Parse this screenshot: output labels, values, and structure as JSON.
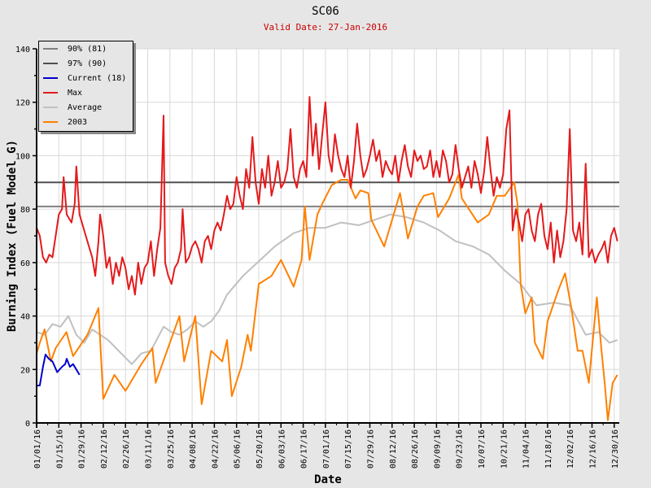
{
  "chart_data": {
    "type": "line",
    "title": "SC06",
    "subtitle": "Valid Date: 27-Jan-2016",
    "xlabel": "Date",
    "ylabel": "Burning Index (Fuel Model G)",
    "ylim": [
      0,
      140
    ],
    "xlim_days": [
      0,
      367
    ],
    "yticks": [
      "0",
      "20",
      "40",
      "60",
      "80",
      "100",
      "120",
      "140"
    ],
    "xticks": [
      "01/01/16",
      "01/15/16",
      "01/29/16",
      "02/12/16",
      "02/26/16",
      "03/11/16",
      "03/25/16",
      "04/08/16",
      "04/22/16",
      "05/06/16",
      "05/20/16",
      "06/03/16",
      "06/17/16",
      "07/01/16",
      "07/15/16",
      "07/29/16",
      "08/12/16",
      "08/26/16",
      "09/09/16",
      "09/23/16",
      "10/07/16",
      "10/21/16",
      "11/04/16",
      "11/18/16",
      "12/02/16",
      "12/16/16",
      "12/30/16"
    ],
    "grid": true,
    "legend_position": "top-left",
    "thresholds": [
      {
        "name": "90% (81)",
        "value": 81,
        "color": "#808080"
      },
      {
        "name": "97% (90)",
        "value": 90,
        "color": "#505050"
      }
    ],
    "series": [
      {
        "name": "Current (18)",
        "color": "#0000cc",
        "x": [
          0,
          2,
          4,
          5.6,
          7.7,
          10,
          13,
          16,
          18,
          19,
          21,
          23,
          25,
          27
        ],
        "y": [
          14,
          14,
          21,
          25.6,
          24,
          23,
          19,
          21,
          22,
          24,
          21,
          22,
          20,
          18
        ]
      },
      {
        "name": "Max",
        "color": "#e41a1c",
        "x": [
          0,
          2,
          4,
          6,
          8,
          10,
          12,
          14,
          16,
          17,
          19,
          22,
          24,
          25,
          27,
          30,
          32,
          35,
          37,
          39,
          40,
          42,
          44,
          46,
          48,
          50,
          52,
          54,
          56,
          58,
          60,
          62,
          64,
          66,
          68,
          70,
          72,
          74,
          76,
          78,
          80,
          81,
          83,
          85,
          87,
          89,
          91,
          92,
          94,
          96,
          98,
          100,
          102,
          104,
          106,
          108,
          110,
          112,
          114,
          116,
          118,
          120,
          122,
          124,
          126,
          128,
          130,
          132,
          134,
          136,
          138,
          140,
          142,
          144,
          146,
          148,
          150,
          152,
          154,
          156,
          158,
          160,
          162,
          164,
          166,
          168,
          170,
          172,
          174,
          176,
          178,
          180,
          182,
          184,
          186,
          188,
          190,
          192,
          194,
          196,
          198,
          200,
          202,
          204,
          206,
          208,
          210,
          212,
          214,
          216,
          218,
          220,
          222,
          224,
          226,
          228,
          230,
          232,
          234,
          236,
          238,
          240,
          242,
          244,
          246,
          248,
          250,
          252,
          254,
          256,
          258,
          260,
          262,
          264,
          266,
          268,
          270,
          272,
          274,
          276,
          278,
          280,
          282,
          284,
          286,
          288,
          290,
          292,
          294,
          296,
          298,
          300,
          302,
          304,
          306,
          308,
          310,
          312,
          314,
          316,
          318,
          320,
          322,
          324,
          326,
          328,
          330,
          332,
          334,
          336,
          338,
          340,
          342,
          344,
          346,
          348,
          350,
          352,
          354,
          356,
          358,
          360,
          362,
          364,
          366
        ],
        "y": [
          73,
          70,
          62,
          60,
          63,
          62,
          70,
          78,
          80,
          92,
          78,
          75,
          82,
          96,
          78,
          72,
          68,
          62,
          55,
          68,
          78,
          70,
          58,
          62,
          52,
          60,
          55,
          62,
          58,
          50,
          55,
          48,
          60,
          52,
          58,
          60,
          68,
          55,
          65,
          73,
          115,
          60,
          55,
          52,
          58,
          60,
          65,
          80,
          60,
          62,
          66,
          68,
          65,
          60,
          68,
          70,
          65,
          72,
          75,
          72,
          78,
          85,
          80,
          82,
          92,
          85,
          80,
          95,
          88,
          107,
          90,
          82,
          95,
          88,
          100,
          85,
          90,
          98,
          88,
          90,
          95,
          110,
          92,
          88,
          95,
          98,
          92,
          122,
          100,
          112,
          95,
          108,
          120,
          100,
          94,
          108,
          100,
          95,
          92,
          100,
          88,
          98,
          112,
          100,
          92,
          95,
          100,
          106,
          98,
          102,
          92,
          98,
          95,
          93,
          100,
          90,
          98,
          104,
          96,
          92,
          102,
          98,
          100,
          95,
          96,
          102,
          92,
          98,
          92,
          102,
          98,
          90,
          93,
          104,
          95,
          88,
          92,
          96,
          88,
          98,
          93,
          86,
          94,
          107,
          95,
          85,
          92,
          88,
          93,
          110,
          117,
          72,
          80,
          75,
          68,
          78,
          80,
          72,
          68,
          78,
          82,
          70,
          65,
          75,
          60,
          72,
          62,
          68,
          80,
          110,
          72,
          68,
          75,
          63,
          97,
          62,
          65,
          60,
          63,
          65,
          68,
          60,
          70,
          73,
          68
        ]
      },
      {
        "name": "Average",
        "color": "#c0c0c0",
        "x": [
          0,
          5,
          10,
          15,
          20,
          25,
          30,
          35,
          40,
          45,
          50,
          55,
          60,
          66,
          72,
          80,
          85,
          90,
          95,
          100,
          105,
          110,
          115,
          120,
          130,
          141,
          150,
          162,
          172,
          182,
          192,
          203,
          213,
          223,
          233,
          244,
          254,
          264,
          275,
          285,
          295,
          305,
          315,
          326,
          336,
          346,
          354,
          361,
          366
        ],
        "y": [
          34,
          33,
          37,
          36,
          40,
          33,
          30,
          35,
          33,
          31,
          28,
          25,
          22,
          26,
          27,
          36,
          34,
          33,
          35,
          38,
          36,
          38,
          42,
          48,
          55,
          61,
          66,
          71,
          73,
          73,
          75,
          74,
          76,
          78,
          77,
          75,
          72,
          68,
          66,
          63,
          57,
          52,
          44,
          45,
          44,
          33,
          34,
          30,
          31
        ]
      },
      {
        "name": "2003",
        "color": "#ff8000",
        "x": [
          0,
          2,
          5,
          9,
          12,
          18.8,
          23,
          32,
          39,
          42,
          49,
          56,
          66,
          73,
          75,
          81,
          90,
          93,
          100,
          104,
          110,
          117,
          120,
          123,
          129,
          133,
          135,
          140,
          148,
          154,
          162,
          167,
          169,
          172,
          177,
          180,
          186,
          192,
          196,
          201,
          204,
          209,
          211,
          219,
          229,
          234,
          240,
          244,
          250,
          253,
          260,
          266,
          268,
          278,
          285,
          290,
          295,
          301,
          303,
          305,
          308,
          312,
          314,
          319,
          322,
          329,
          333,
          337,
          341,
          344,
          348,
          353,
          356,
          358,
          360,
          363,
          366
        ],
        "y": [
          26,
          30,
          35,
          23,
          28,
          34,
          25,
          33,
          43,
          9,
          18,
          12,
          22,
          28,
          15,
          25,
          40,
          23,
          40,
          7,
          27,
          23,
          31,
          10,
          21,
          33,
          27,
          52,
          55,
          61,
          51,
          61,
          81,
          61,
          78,
          82,
          89,
          91,
          91,
          84,
          87,
          86,
          76,
          66,
          86,
          69,
          81,
          85,
          86,
          77,
          84,
          93,
          84,
          75,
          78,
          85,
          85,
          90,
          82,
          52,
          41,
          47,
          30,
          24,
          38,
          50,
          56,
          43,
          27,
          27,
          15,
          47,
          27,
          15,
          1,
          15,
          18
        ]
      }
    ]
  }
}
